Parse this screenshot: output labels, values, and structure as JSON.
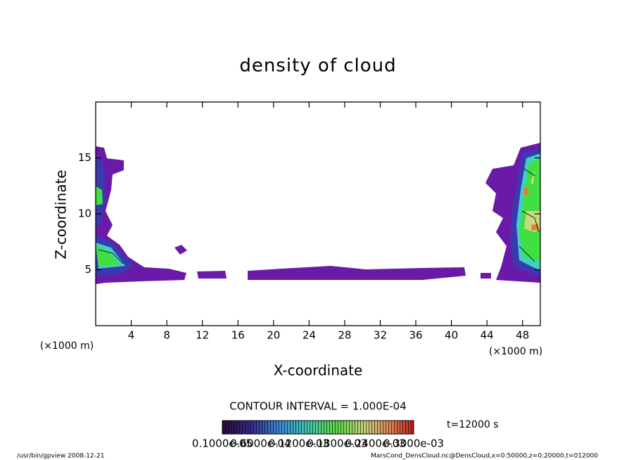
{
  "chart_data": {
    "type": "contour",
    "title": "density of cloud",
    "xlabel": "X-coordinate",
    "ylabel": "Z-coordinate",
    "xunit": "(×1000 m)",
    "yunit": "(×1000 m)",
    "xlim": [
      0,
      50
    ],
    "ylim": [
      0,
      20
    ],
    "xticks": [
      4,
      8,
      12,
      16,
      20,
      24,
      28,
      32,
      36,
      40,
      44,
      48
    ],
    "yticks": [
      5,
      10,
      15
    ],
    "contour_interval": "CONTOUR INTERVAL = 1.000E-04",
    "time": "t=12000 s",
    "colorbar_labels": [
      "0.1000e-05",
      "0.6000e-04",
      "0.1200e-03",
      "0.1800e-03",
      "0.2400e-03",
      "0.3000e-03"
    ],
    "footer_left": "/usr/bin/gpview   2008-12-21",
    "footer_right": "MarsCond_DensCloud.nc@DensCloud,x=0:50000,z=0:20000,t=012000"
  }
}
